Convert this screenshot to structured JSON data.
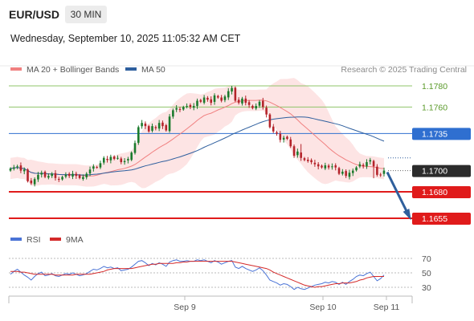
{
  "header": {
    "symbol": "EUR/USD",
    "timeframe": "30 MIN",
    "datetime": "Wednesday, September 10, 2025 11:05:32 AM CET"
  },
  "legend": {
    "ma20_label": "MA 20 + Bollinger Bands",
    "ma50_label": "MA 50",
    "source": "Research © 2025 Trading Central"
  },
  "rsi_legend": {
    "rsi_label": "RSI",
    "ma_label": "9MA"
  },
  "colors": {
    "ma20": "#f08080",
    "bollinger_fill": "#fde4e4",
    "ma50": "#2e5f9e",
    "candle_up": "#1a7a2c",
    "candle_down": "#b4232a",
    "resistance": "#8fc46a",
    "pivot": "#2f6fd0",
    "support": "#e01b1b",
    "last_price_badge": "#2b2b2b",
    "arrow": "#2f5f9c",
    "rsi": "#4a73d6",
    "rsi_ma": "#d42a2a"
  },
  "chart_data": [
    {
      "type": "candlestick",
      "x_labels": [
        "Sep 9",
        "Sep 10",
        "Sep 11"
      ],
      "ylim": [
        1.1645,
        1.179
      ],
      "levels": [
        {
          "value": "1.1780",
          "kind": "resistance"
        },
        {
          "value": "1.1760",
          "kind": "resistance"
        },
        {
          "value": "1.1735",
          "kind": "pivot"
        },
        {
          "value": "1.1700",
          "kind": "last_price"
        },
        {
          "value": "1.1680",
          "kind": "support"
        },
        {
          "value": "1.1655",
          "kind": "support"
        }
      ],
      "close": [
        1.1702,
        1.1703,
        1.1704,
        1.17,
        1.1701,
        1.169,
        1.1688,
        1.1692,
        1.1696,
        1.1698,
        1.1694,
        1.1695,
        1.1697,
        1.1693,
        1.1692,
        1.1694,
        1.1696,
        1.1695,
        1.1697,
        1.1695,
        1.1693,
        1.1694,
        1.1697,
        1.1701,
        1.1704,
        1.1703,
        1.1707,
        1.1712,
        1.171,
        1.1713,
        1.1711,
        1.1712,
        1.1708,
        1.1709,
        1.1711,
        1.1717,
        1.1726,
        1.1741,
        1.1745,
        1.1742,
        1.1737,
        1.1742,
        1.174,
        1.1745,
        1.1742,
        1.1738,
        1.1751,
        1.1757,
        1.1759,
        1.1758,
        1.176,
        1.1761,
        1.176,
        1.1761,
        1.1766,
        1.1765,
        1.1769,
        1.1767,
        1.1764,
        1.1771,
        1.1769,
        1.1766,
        1.177,
        1.1775,
        1.1778,
        1.1766,
        1.1764,
        1.1768,
        1.1764,
        1.1762,
        1.1759,
        1.1761,
        1.1765,
        1.176,
        1.1753,
        1.1741,
        1.1737,
        1.1735,
        1.1729,
        1.1731,
        1.173,
        1.1723,
        1.1714,
        1.1718,
        1.1712,
        1.171,
        1.1709,
        1.1708,
        1.1706,
        1.1704,
        1.1703,
        1.1705,
        1.1703,
        1.1704,
        1.1703,
        1.1697,
        1.1699,
        1.1695,
        1.1698,
        1.17,
        1.1703,
        1.1706,
        1.1704,
        1.1708,
        1.171,
        1.1704,
        1.1696,
        1.1696,
        1.17
      ],
      "series": [
        {
          "name": "MA 20 + Bollinger Bands"
        },
        {
          "name": "MA 50"
        }
      ],
      "forecast_arrow": {
        "from": 1.17,
        "to": 1.1655
      }
    },
    {
      "type": "line",
      "title": "RSI",
      "ylim": [
        20,
        80
      ],
      "yticks": [
        "70",
        "50",
        "30"
      ],
      "series": [
        {
          "name": "RSI",
          "values": [
            48,
            52,
            55,
            51,
            47,
            44,
            40,
            45,
            49,
            51,
            46,
            47,
            49,
            46,
            45,
            47,
            49,
            48,
            50,
            48,
            46,
            47,
            49,
            52,
            55,
            54,
            56,
            59,
            57,
            58,
            56,
            57,
            53,
            54,
            55,
            58,
            62,
            66,
            67,
            64,
            60,
            63,
            61,
            64,
            62,
            59,
            65,
            67,
            68,
            66,
            66,
            67,
            66,
            66,
            68,
            67,
            68,
            66,
            64,
            67,
            65,
            62,
            64,
            66,
            67,
            58,
            56,
            59,
            56,
            54,
            52,
            54,
            57,
            53,
            47,
            40,
            38,
            36,
            33,
            35,
            34,
            31,
            27,
            30,
            28,
            27,
            29,
            31,
            33,
            34,
            35,
            37,
            36,
            38,
            37,
            34,
            37,
            34,
            38,
            41,
            45,
            47,
            46,
            49,
            51,
            45,
            39,
            42,
            47
          ]
        },
        {
          "name": "9MA",
          "values": [
            52,
            52,
            52,
            51,
            51,
            50,
            49,
            48,
            48,
            48,
            48,
            48,
            48,
            47,
            47,
            47,
            47,
            47,
            47,
            48,
            48,
            48,
            48,
            48,
            49,
            50,
            51,
            52,
            54,
            55,
            56,
            56,
            56,
            56,
            56,
            56,
            57,
            58,
            59,
            60,
            61,
            62,
            62,
            63,
            63,
            63,
            63,
            63,
            64,
            64,
            65,
            65,
            66,
            66,
            66,
            66,
            66,
            66,
            66,
            66,
            66,
            66,
            66,
            66,
            66,
            65,
            64,
            63,
            62,
            61,
            60,
            59,
            58,
            57,
            56,
            54,
            51,
            49,
            47,
            45,
            43,
            41,
            39,
            37,
            35,
            33,
            32,
            31,
            30,
            31,
            31,
            32,
            33,
            34,
            35,
            35,
            36,
            36,
            36,
            37,
            38,
            40,
            41,
            43,
            44,
            45,
            45,
            45,
            45
          ]
        }
      ]
    }
  ]
}
